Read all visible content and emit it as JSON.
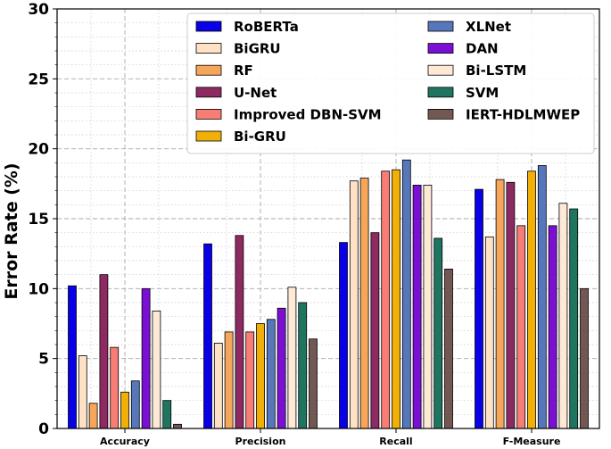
{
  "chart_data": {
    "type": "bar",
    "title": "",
    "xlabel": "",
    "ylabel": "Error Rate (%)",
    "ylim": [
      0,
      30
    ],
    "yticks": [
      0,
      5,
      10,
      15,
      20,
      25,
      30
    ],
    "grid": true,
    "legend_position": "top-right",
    "categories": [
      "Accuracy",
      "Precision",
      "Recall",
      "F-Measure"
    ],
    "series": [
      {
        "name": "RoBERTa",
        "color": "#0a00e6",
        "values": [
          10.2,
          13.2,
          13.3,
          17.1
        ]
      },
      {
        "name": "BiGRU",
        "color": "#ffe2c6",
        "values": [
          5.2,
          6.1,
          17.7,
          13.7
        ]
      },
      {
        "name": "RF",
        "color": "#f6a65a",
        "values": [
          1.8,
          6.9,
          17.9,
          17.8
        ]
      },
      {
        "name": "U-Net",
        "color": "#8e2a62",
        "values": [
          11.0,
          13.8,
          14.0,
          17.6
        ]
      },
      {
        "name": "Improved DBN-SVM",
        "color": "#f87d75",
        "values": [
          5.8,
          6.9,
          18.4,
          14.5
        ]
      },
      {
        "name": "Bi-GRU",
        "color": "#f1b007",
        "values": [
          2.6,
          7.5,
          18.5,
          18.4
        ]
      },
      {
        "name": "XLNet",
        "color": "#5777bb",
        "values": [
          3.4,
          7.8,
          19.2,
          18.8
        ]
      },
      {
        "name": "DAN",
        "color": "#7b10d4",
        "values": [
          10.0,
          8.6,
          17.4,
          14.5
        ]
      },
      {
        "name": "Bi-LSTM",
        "color": "#fde9d6",
        "values": [
          8.4,
          10.1,
          17.4,
          16.1
        ]
      },
      {
        "name": "SVM",
        "color": "#1f7560",
        "values": [
          2.0,
          9.0,
          13.6,
          15.7
        ]
      },
      {
        "name": "IERT-HDLMWEP",
        "color": "#735753",
        "values": [
          0.3,
          6.4,
          11.4,
          10.0
        ]
      }
    ]
  }
}
